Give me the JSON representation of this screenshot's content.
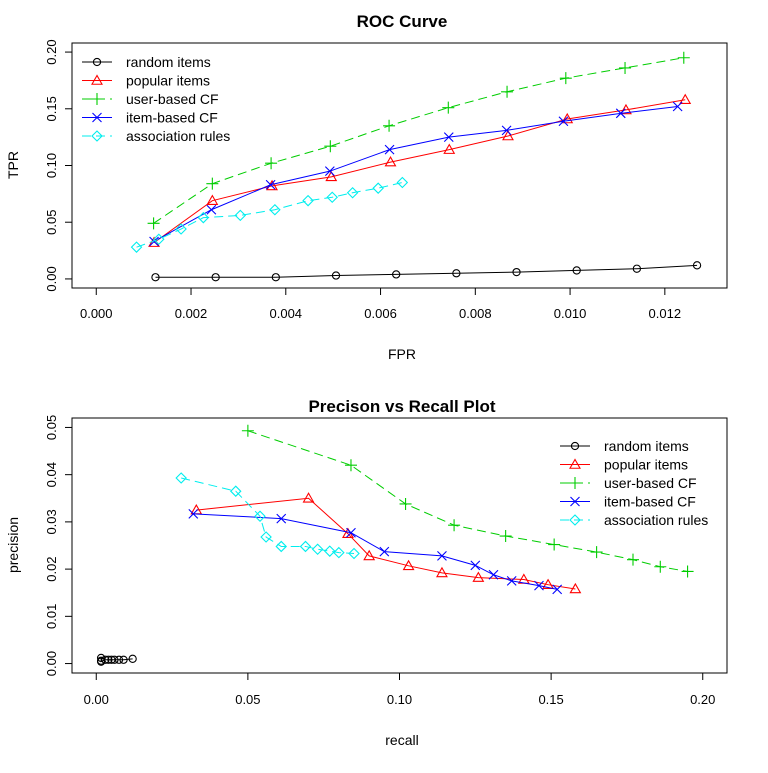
{
  "chart_data": [
    {
      "type": "line",
      "title": "ROC Curve",
      "xlabel": "FPR",
      "ylabel": "TPR",
      "xlim": [
        0,
        0.0128
      ],
      "ylim": [
        0,
        0.2
      ],
      "xticks": [
        0.0,
        0.002,
        0.004,
        0.006,
        0.008,
        0.01,
        0.012
      ],
      "xtick_labels": [
        "0.000",
        "0.002",
        "0.004",
        "0.006",
        "0.008",
        "0.010",
        "0.012"
      ],
      "yticks": [
        0.0,
        0.05,
        0.1,
        0.15,
        0.2
      ],
      "ytick_labels": [
        "0.00",
        "0.05",
        "0.10",
        "0.15",
        "0.20"
      ],
      "grid": false,
      "legend_position": "top-left",
      "series": [
        {
          "name": "random items",
          "color": "#000000",
          "marker": "circle",
          "line": "solid",
          "x": [
            0.00125,
            0.00252,
            0.00379,
            0.00506,
            0.00633,
            0.0076,
            0.00887,
            0.01014,
            0.01141,
            0.01268
          ],
          "y": [
            0.0015,
            0.0015,
            0.0015,
            0.003,
            0.004,
            0.005,
            0.006,
            0.0075,
            0.009,
            0.012
          ]
        },
        {
          "name": "popular items",
          "color": "#ff0000",
          "marker": "triangle",
          "line": "solid",
          "x": [
            0.00122,
            0.00245,
            0.00371,
            0.00496,
            0.00621,
            0.00745,
            0.00869,
            0.00994,
            0.01118,
            0.01243
          ],
          "y": [
            0.032,
            0.069,
            0.082,
            0.09,
            0.103,
            0.114,
            0.126,
            0.141,
            0.149,
            0.158
          ]
        },
        {
          "name": "user-based CF",
          "color": "#00cd00",
          "marker": "plus",
          "line": "dashed",
          "x": [
            0.00121,
            0.00245,
            0.00369,
            0.00494,
            0.00618,
            0.00743,
            0.00867,
            0.00991,
            0.01116,
            0.0124
          ],
          "y": [
            0.049,
            0.084,
            0.102,
            0.117,
            0.135,
            0.151,
            0.165,
            0.177,
            0.186,
            0.195
          ]
        },
        {
          "name": "item-based CF",
          "color": "#0000ff",
          "marker": "x",
          "line": "solid",
          "x": [
            0.00122,
            0.00243,
            0.00368,
            0.00493,
            0.00619,
            0.00744,
            0.00866,
            0.00986,
            0.01107,
            0.01227
          ],
          "y": [
            0.033,
            0.061,
            0.083,
            0.095,
            0.114,
            0.125,
            0.131,
            0.139,
            0.146,
            0.152
          ]
        },
        {
          "name": "association rules",
          "color": "#00eeee",
          "marker": "diamond",
          "line": "dashed",
          "x": [
            0.00085,
            0.00132,
            0.00179,
            0.00226,
            0.00304,
            0.00377,
            0.00447,
            0.00498,
            0.00541,
            0.00595,
            0.00646
          ],
          "y": [
            0.028,
            0.035,
            0.044,
            0.054,
            0.056,
            0.061,
            0.069,
            0.072,
            0.076,
            0.08,
            0.085
          ]
        }
      ]
    },
    {
      "type": "line",
      "title": "Precison vs Recall Plot",
      "xlabel": "recall",
      "ylabel": "precision",
      "xlim": [
        0,
        0.2
      ],
      "ylim": [
        0,
        0.05
      ],
      "xticks": [
        0.0,
        0.05,
        0.1,
        0.15,
        0.2
      ],
      "xtick_labels": [
        "0.00",
        "0.05",
        "0.10",
        "0.15",
        "0.20"
      ],
      "yticks": [
        0.0,
        0.01,
        0.02,
        0.03,
        0.04,
        0.05
      ],
      "ytick_labels": [
        "0.00",
        "0.01",
        "0.02",
        "0.03",
        "0.04",
        "0.05"
      ],
      "grid": false,
      "legend_position": "top-right",
      "series": [
        {
          "name": "random items",
          "color": "#000000",
          "marker": "circle",
          "line": "solid",
          "x": [
            0.0016,
            0.0016,
            0.0016,
            0.003,
            0.004,
            0.005,
            0.006,
            0.0075,
            0.009,
            0.012
          ],
          "y": [
            0.0012,
            0.0006,
            0.0004,
            0.0008,
            0.0008,
            0.0008,
            0.0008,
            0.0008,
            0.0008,
            0.001
          ]
        },
        {
          "name": "popular items",
          "color": "#ff0000",
          "marker": "triangle",
          "line": "solid",
          "x": [
            0.033,
            0.07,
            0.083,
            0.09,
            0.103,
            0.114,
            0.126,
            0.141,
            0.149,
            0.158
          ],
          "y": [
            0.0325,
            0.035,
            0.0275,
            0.0228,
            0.0207,
            0.0192,
            0.0182,
            0.0178,
            0.0167,
            0.0158
          ]
        },
        {
          "name": "user-based CF",
          "color": "#00cd00",
          "marker": "plus",
          "line": "dashed",
          "x": [
            0.05,
            0.084,
            0.102,
            0.118,
            0.135,
            0.151,
            0.165,
            0.177,
            0.186,
            0.195
          ],
          "y": [
            0.0493,
            0.042,
            0.0338,
            0.0293,
            0.027,
            0.0252,
            0.0236,
            0.022,
            0.0205,
            0.0195
          ]
        },
        {
          "name": "item-based CF",
          "color": "#0000ff",
          "marker": "x",
          "line": "solid",
          "x": [
            0.032,
            0.061,
            0.084,
            0.095,
            0.114,
            0.125,
            0.131,
            0.137,
            0.146,
            0.152
          ],
          "y": [
            0.0317,
            0.0307,
            0.0277,
            0.0237,
            0.0228,
            0.0208,
            0.0188,
            0.0175,
            0.0165,
            0.0157
          ]
        },
        {
          "name": "association rules",
          "color": "#00eeee",
          "marker": "diamond",
          "line": "dashed",
          "x": [
            0.028,
            0.046,
            0.054,
            0.056,
            0.061,
            0.069,
            0.073,
            0.077,
            0.08,
            0.085
          ],
          "y": [
            0.0393,
            0.0365,
            0.0312,
            0.0268,
            0.0248,
            0.0248,
            0.0242,
            0.0238,
            0.0235,
            0.0233
          ]
        }
      ]
    }
  ]
}
